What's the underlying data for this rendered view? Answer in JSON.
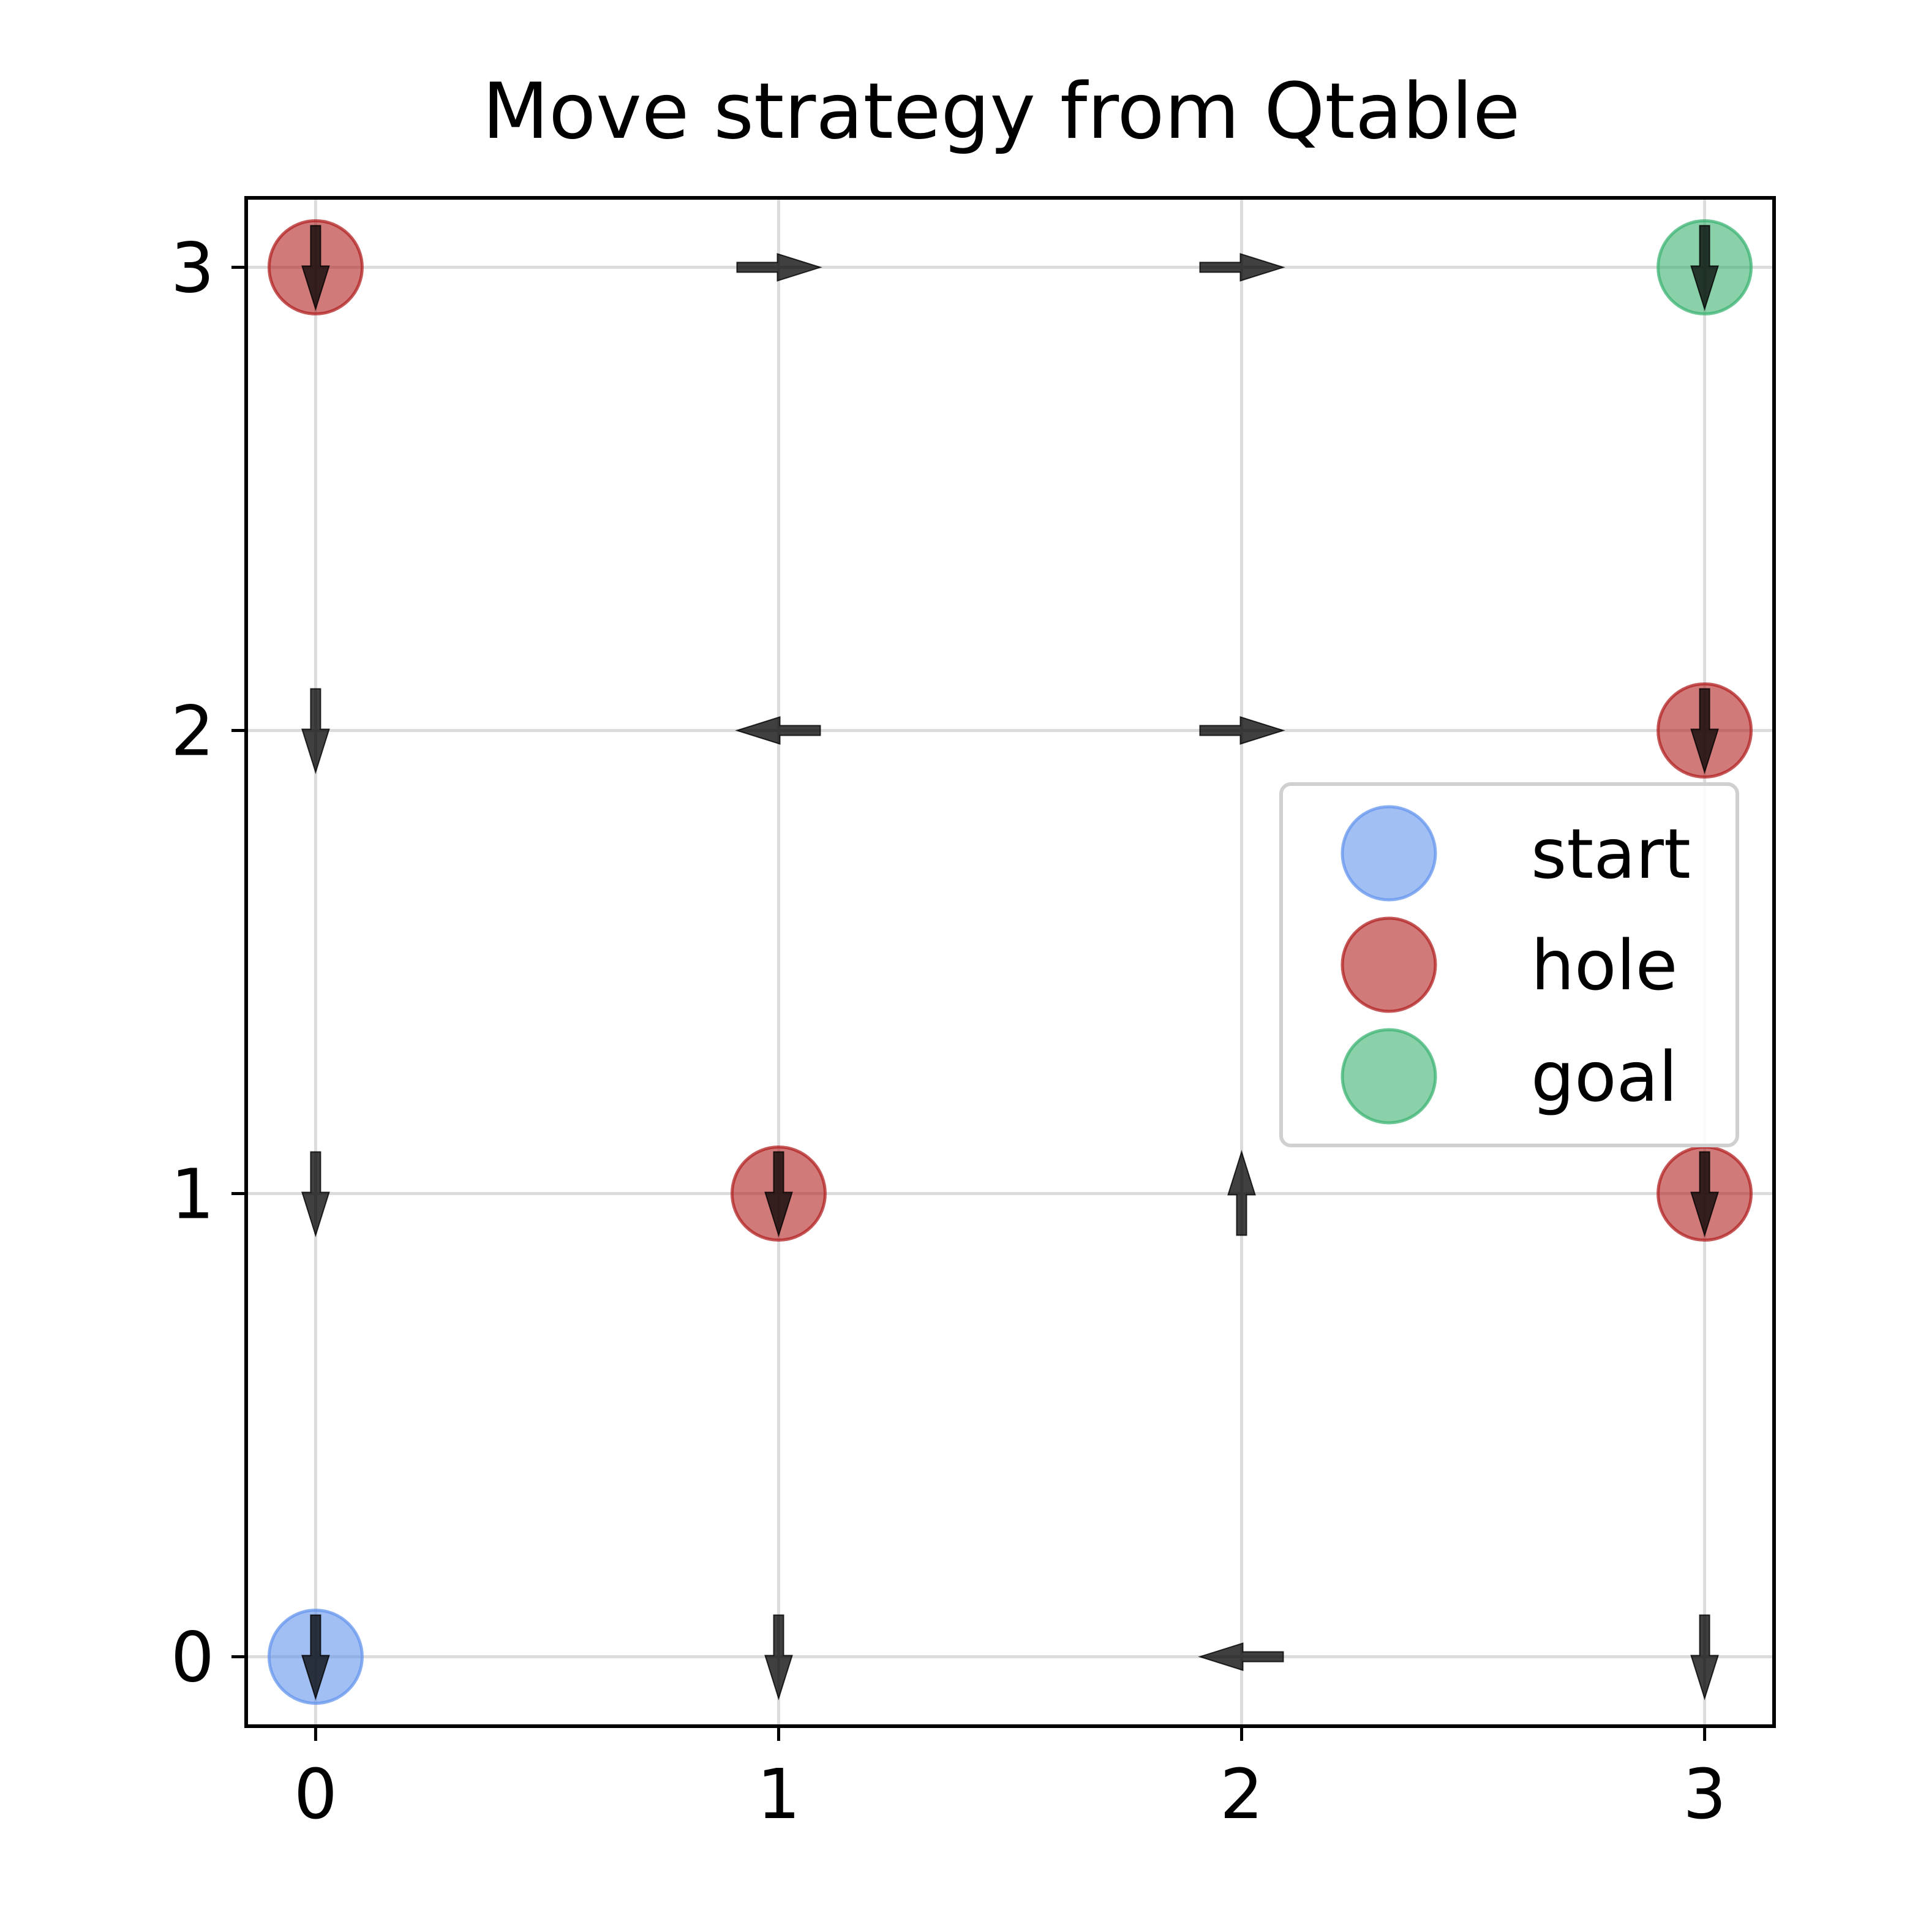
{
  "chart_data": {
    "type": "scatter",
    "title": "Move strategy from Qtable",
    "xlabel": "",
    "ylabel": "",
    "xlim": [
      -0.15,
      3.15
    ],
    "ylim": [
      -0.15,
      3.15
    ],
    "x_ticks": [
      "0",
      "1",
      "2",
      "3"
    ],
    "y_ticks": [
      "0",
      "1",
      "2",
      "3"
    ],
    "grid": true,
    "legend_position": "center-right",
    "series": [
      {
        "name": "start",
        "color": "#6495ED",
        "points": [
          {
            "x": 0,
            "y": 0
          }
        ]
      },
      {
        "name": "hole",
        "color": "#B22222",
        "points": [
          {
            "x": 0,
            "y": 3
          },
          {
            "x": 1,
            "y": 1
          },
          {
            "x": 3,
            "y": 2
          },
          {
            "x": 3,
            "y": 1
          }
        ]
      },
      {
        "name": "goal",
        "color": "#3CB371",
        "points": [
          {
            "x": 3,
            "y": 3
          }
        ]
      }
    ],
    "arrows": [
      {
        "x": 0,
        "y": 0,
        "direction": "down"
      },
      {
        "x": 1,
        "y": 0,
        "direction": "down"
      },
      {
        "x": 2,
        "y": 0,
        "direction": "left"
      },
      {
        "x": 3,
        "y": 0,
        "direction": "down"
      },
      {
        "x": 0,
        "y": 1,
        "direction": "down"
      },
      {
        "x": 1,
        "y": 1,
        "direction": "down"
      },
      {
        "x": 2,
        "y": 1,
        "direction": "up"
      },
      {
        "x": 3,
        "y": 1,
        "direction": "down"
      },
      {
        "x": 0,
        "y": 2,
        "direction": "down"
      },
      {
        "x": 1,
        "y": 2,
        "direction": "left"
      },
      {
        "x": 2,
        "y": 2,
        "direction": "right"
      },
      {
        "x": 3,
        "y": 2,
        "direction": "down"
      },
      {
        "x": 0,
        "y": 3,
        "direction": "down"
      },
      {
        "x": 1,
        "y": 3,
        "direction": "right"
      },
      {
        "x": 2,
        "y": 3,
        "direction": "right"
      },
      {
        "x": 3,
        "y": 3,
        "direction": "down"
      }
    ]
  }
}
